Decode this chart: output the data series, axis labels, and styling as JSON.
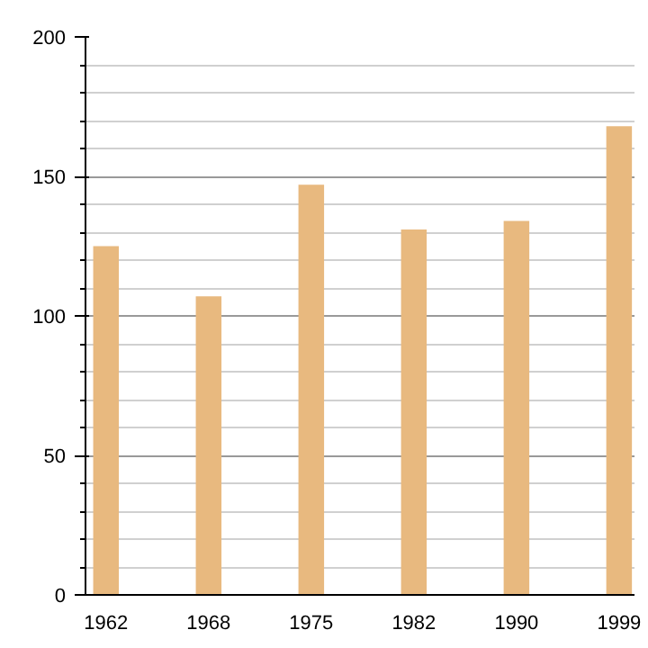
{
  "chart_data": {
    "type": "bar",
    "categories": [
      "1962",
      "1968",
      "1975",
      "1982",
      "1990",
      "1999"
    ],
    "values": [
      125,
      107,
      147,
      131,
      134,
      168
    ],
    "color": "#e8b97f",
    "ylim": [
      0,
      200
    ],
    "yticks": [
      0,
      50,
      100,
      150,
      200
    ],
    "grid": "y"
  }
}
